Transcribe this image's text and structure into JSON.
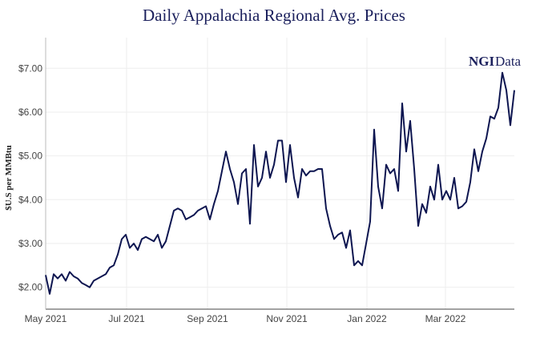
{
  "chart_data": {
    "type": "line",
    "title": "Daily Appalachia Regional Avg. Prices",
    "y_label": "$U.S per MMBtu",
    "annotations": [
      "NGI",
      "Data"
    ],
    "series": [
      {
        "name": "Appalachia Regional Avg.",
        "color": "#0d1550",
        "values": [
          2.28,
          1.85,
          2.3,
          2.2,
          2.3,
          2.15,
          2.35,
          2.25,
          2.2,
          2.1,
          2.05,
          2.0,
          2.15,
          2.2,
          2.25,
          2.3,
          2.45,
          2.5,
          2.75,
          3.1,
          3.2,
          2.9,
          3.0,
          2.85,
          3.1,
          3.15,
          3.1,
          3.05,
          3.2,
          2.9,
          3.05,
          3.4,
          3.75,
          3.8,
          3.75,
          3.55,
          3.6,
          3.65,
          3.75,
          3.8,
          3.85,
          3.55,
          3.9,
          4.2,
          4.65,
          5.1,
          4.7,
          4.4,
          3.9,
          4.6,
          4.7,
          3.45,
          5.25,
          4.3,
          4.5,
          5.1,
          4.5,
          4.8,
          5.35,
          5.35,
          4.4,
          5.25,
          4.5,
          4.05,
          4.7,
          4.55,
          4.65,
          4.65,
          4.7,
          4.7,
          3.8,
          3.4,
          3.1,
          3.2,
          3.25,
          2.9,
          3.3,
          2.5,
          2.6,
          2.5,
          3.0,
          3.5,
          5.6,
          4.3,
          3.8,
          4.8,
          4.6,
          4.7,
          4.2,
          6.2,
          5.1,
          5.8,
          4.7,
          3.4,
          3.9,
          3.7,
          4.3,
          4.0,
          4.8,
          4.0,
          4.2,
          4.0,
          4.5,
          3.8,
          3.85,
          3.95,
          4.4,
          5.15,
          4.65,
          5.1,
          5.4,
          5.9,
          5.85,
          6.1,
          6.9,
          6.5,
          5.7,
          6.5
        ]
      }
    ],
    "xlim": [
      0,
      117
    ],
    "xticks": [
      {
        "value": 0,
        "label": "May 2021"
      },
      {
        "value": 20.2,
        "label": "Jul 2021"
      },
      {
        "value": 40.4,
        "label": "Sep 2021"
      },
      {
        "value": 60.2,
        "label": "Nov 2021"
      },
      {
        "value": 80.2,
        "label": "Jan 2022"
      },
      {
        "value": 99.8,
        "label": "Mar 2022"
      }
    ],
    "ylim": [
      1.5,
      7.7
    ],
    "yticks": [
      {
        "value": 2,
        "label": "$2.00"
      },
      {
        "value": 3,
        "label": "$3.00"
      },
      {
        "value": 4,
        "label": "$4.00"
      },
      {
        "value": 5,
        "label": "$5.00"
      },
      {
        "value": 6,
        "label": "$6.00"
      },
      {
        "value": 7,
        "label": "$7.00"
      }
    ],
    "grid": true
  }
}
